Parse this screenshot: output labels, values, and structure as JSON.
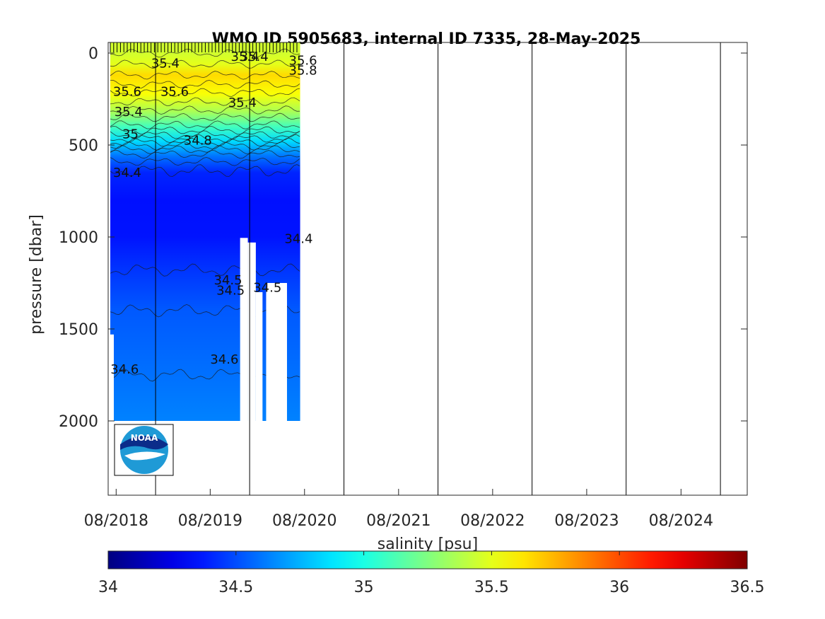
{
  "chart_data": {
    "type": "heatmap",
    "title": "WMO ID 5905683, internal ID 7335, 28-May-2025",
    "ylabel": "pressure [dbar]",
    "y_reversed": true,
    "ylim": [
      0,
      2400
    ],
    "y_ticks": [
      0,
      500,
      1000,
      1500,
      2000
    ],
    "x_start": "2018-07-01",
    "x_end": "2025-04-15",
    "x_ticks": [
      "08/2018",
      "08/2019",
      "08/2020",
      "08/2021",
      "08/2022",
      "08/2023",
      "08/2024"
    ],
    "x_tick_dates": [
      "2018-08-01",
      "2019-08-01",
      "2020-08-01",
      "2021-08-01",
      "2022-08-01",
      "2023-08-01",
      "2024-08-01"
    ],
    "year_lines": [
      "2019-01-01",
      "2020-01-01",
      "2021-01-01",
      "2022-01-01",
      "2023-01-01",
      "2024-01-01",
      "2025-01-01"
    ],
    "data_end": "2020-07-15",
    "colorbar": {
      "label": "salinity [psu]",
      "range": [
        34,
        36.5
      ],
      "ticks": [
        "34",
        "34.5",
        "35",
        "35.5",
        "36",
        "36.5"
      ],
      "colormap": "jet"
    },
    "salinity_profile": [
      {
        "p": 0,
        "s": 35.45
      },
      {
        "p": 60,
        "s": 35.5
      },
      {
        "p": 120,
        "s": 35.65
      },
      {
        "p": 220,
        "s": 35.55
      },
      {
        "p": 320,
        "s": 35.35
      },
      {
        "p": 400,
        "s": 35.1
      },
      {
        "p": 480,
        "s": 34.85
      },
      {
        "p": 560,
        "s": 34.6
      },
      {
        "p": 650,
        "s": 34.4
      },
      {
        "p": 800,
        "s": 34.35
      },
      {
        "p": 1000,
        "s": 34.36
      },
      {
        "p": 1200,
        "s": 34.45
      },
      {
        "p": 1400,
        "s": 34.53
      },
      {
        "p": 1700,
        "s": 34.58
      },
      {
        "p": 2000,
        "s": 34.63
      }
    ],
    "contour_labels": [
      {
        "text": "35.4",
        "x": "2018-12-15",
        "p": 55
      },
      {
        "text": "35.4",
        "x": "2019-10-20",
        "p": 20
      },
      {
        "text": "35.4",
        "x": "2019-11-25",
        "p": 20
      },
      {
        "text": "35.6",
        "x": "2020-06-01",
        "p": 40
      },
      {
        "text": "35.8",
        "x": "2020-06-01",
        "p": 95
      },
      {
        "text": "35.6",
        "x": "2018-07-20",
        "p": 210
      },
      {
        "text": "35.6",
        "x": "2019-01-20",
        "p": 210
      },
      {
        "text": "35.4",
        "x": "2019-10-10",
        "p": 270
      },
      {
        "text": "35.4",
        "x": "2018-07-25",
        "p": 320
      },
      {
        "text": "35",
        "x": "2018-08-25",
        "p": 440
      },
      {
        "text": "34.8",
        "x": "2019-04-20",
        "p": 475
      },
      {
        "text": "34.4",
        "x": "2018-07-20",
        "p": 650
      },
      {
        "text": "34.4",
        "x": "2020-05-15",
        "p": 1010
      },
      {
        "text": "34.5",
        "x": "2019-08-15",
        "p": 1235
      },
      {
        "text": "34.5",
        "x": "2019-08-25",
        "p": 1290
      },
      {
        "text": "34.5",
        "x": "2020-01-15",
        "p": 1275
      },
      {
        "text": "34.6",
        "x": "2018-07-10",
        "p": 1720
      },
      {
        "text": "34.6",
        "x": "2019-08-01",
        "p": 1665
      }
    ],
    "logo_text": "NOAA"
  }
}
